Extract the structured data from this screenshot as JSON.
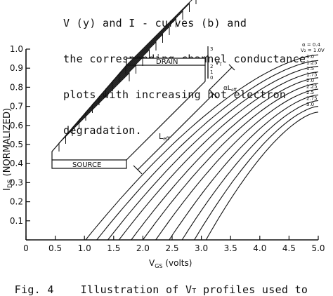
{
  "text": {
    "line0": "V (y) and I - curves (b) and",
    "line1": "the corresponding channel conductance",
    "line2": "plots with increasing hot electron",
    "line3": "degradation."
  },
  "caption": {
    "fig": "Fig. 4",
    "body": "Illustration of V",
    "sub": "T",
    "tail": " profiles used to"
  },
  "chart_data": {
    "type": "line",
    "xlabel": "V",
    "xlabel_sub": "GS",
    "xlabel_unit": "(volts)",
    "ylabel": "I",
    "ylabel_sub": "DS",
    "ylabel_unit": "(NORMALIZED)",
    "xlim": [
      0,
      5.0
    ],
    "ylim": [
      0,
      1.0
    ],
    "xticks": [
      "0",
      "0.5",
      "1.0",
      "1.5",
      "2.0",
      "2.5",
      "3.0",
      "3.5",
      "4.0",
      "4.5",
      "5.0"
    ],
    "yticks": [
      "0",
      "0.1",
      "0.2",
      "0.3",
      "0.4",
      "0.5",
      "0.6",
      "0.7",
      "0.8",
      "0.9",
      "1.0"
    ],
    "legend_header": [
      "α = 0.4",
      "V₂ = 1.0V"
    ],
    "series": [
      {
        "name": "1.0",
        "x_start": 1.02,
        "y_end": 0.97
      },
      {
        "name": "1.25",
        "x_start": 1.21,
        "y_end": 0.94
      },
      {
        "name": "1.5",
        "x_start": 1.4,
        "y_end": 0.91
      },
      {
        "name": "1.75",
        "x_start": 1.59,
        "y_end": 0.88
      },
      {
        "name": "2.0",
        "x_start": 1.8,
        "y_end": 0.85
      },
      {
        "name": "2.25",
        "x_start": 2.0,
        "y_end": 0.82
      },
      {
        "name": "2.5",
        "x_start": 2.22,
        "y_end": 0.79
      },
      {
        "name": "2.75",
        "x_start": 2.45,
        "y_end": 0.76
      },
      {
        "name": "3.0",
        "x_start": 2.67,
        "y_end": 0.73
      },
      {
        "name": "",
        "x_start": 2.88,
        "y_end": 0.7
      },
      {
        "name": "",
        "x_start": 3.08,
        "y_end": 0.67
      }
    ],
    "legend_labels": [
      "1.0",
      "1.25",
      "1.5",
      "1.75",
      "2.0",
      "2.25",
      "2.5",
      "2.75",
      "3.0"
    ]
  },
  "inset": {
    "drain": "DRAIN",
    "source": "SOURCE",
    "vt": "V",
    "vt_sub": "T",
    "leff": "L",
    "leff_sub": "eff",
    "aleff": "αL",
    "aleff_sub": "eff",
    "scale": [
      "3",
      "2",
      "1",
      "0"
    ]
  }
}
